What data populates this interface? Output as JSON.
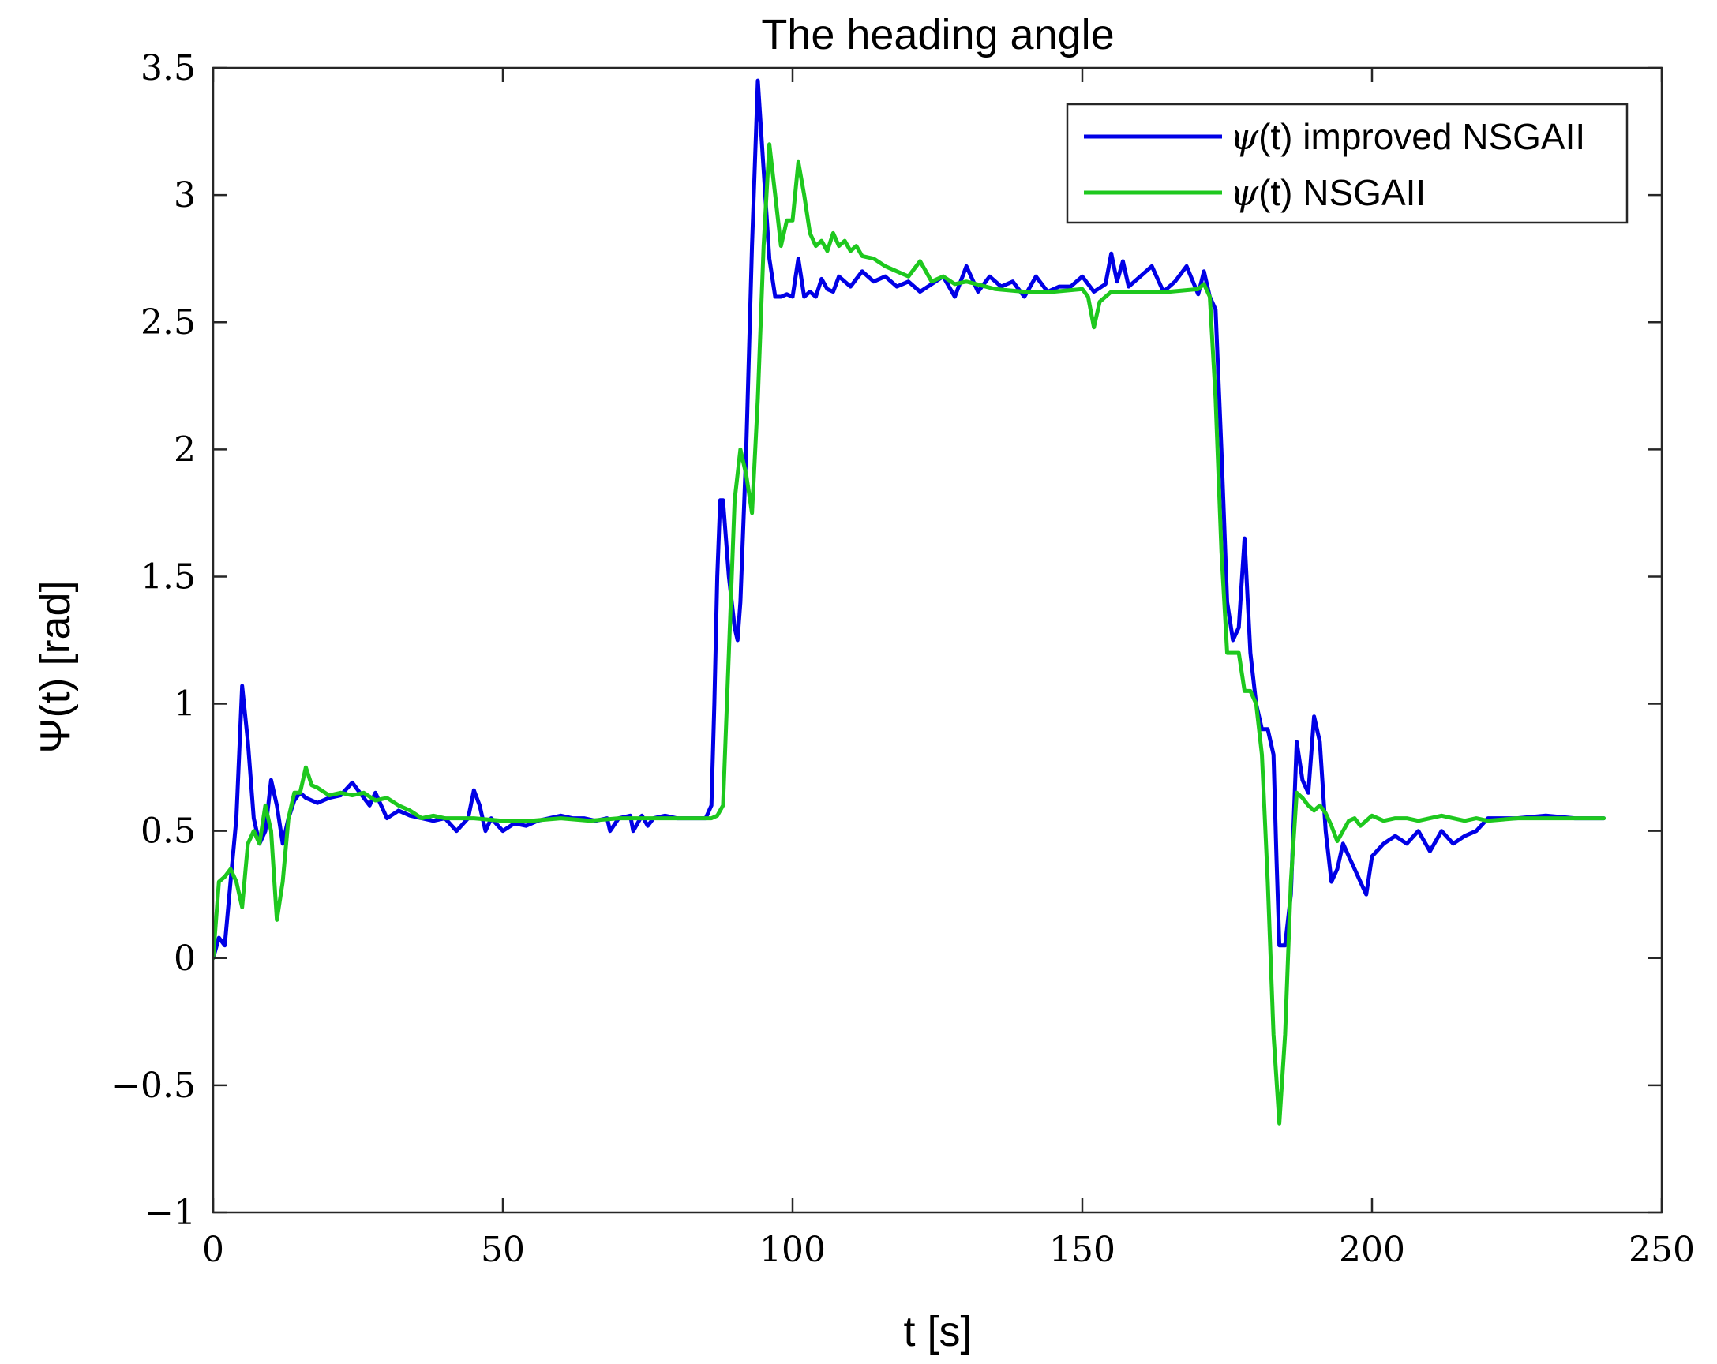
{
  "chart_data": {
    "type": "line",
    "title": "The heading angle",
    "xlabel": "t [s]",
    "ylabel": "Ψ(t) [rad]",
    "xlim": [
      0,
      250
    ],
    "ylim": [
      -1,
      3.5
    ],
    "xticks": [
      0,
      50,
      100,
      150,
      200,
      250
    ],
    "xtick_labels": [
      "0",
      "50",
      "100",
      "150",
      "200",
      "250"
    ],
    "yticks": [
      -1,
      -0.5,
      0,
      0.5,
      1,
      1.5,
      2,
      2.5,
      3,
      3.5
    ],
    "ytick_labels": [
      "−1",
      "−0.5",
      "0",
      "0.5",
      "1",
      "1.5",
      "2",
      "2.5",
      "3",
      "3.5"
    ],
    "grid": false,
    "box": true,
    "legend_position": "top-right",
    "series": [
      {
        "name": "ψ(t) improved NSGAII",
        "legend_symbol": "ψ",
        "legend_rest": "(t) improved NSGAII",
        "color": "#0000e6",
        "x": [
          0,
          1,
          2,
          3,
          4,
          5,
          6,
          7,
          8,
          9,
          10,
          11,
          12,
          13,
          14,
          15,
          16,
          17,
          18,
          20,
          22,
          24,
          25,
          27,
          28,
          30,
          32,
          34,
          36,
          38,
          40,
          42,
          44,
          45,
          46,
          47,
          48,
          50,
          52,
          54,
          56,
          58,
          60,
          62,
          64,
          66,
          68,
          68.5,
          70,
          72,
          72.5,
          74,
          75,
          76,
          78,
          80,
          82,
          84,
          85,
          86,
          86.5,
          87,
          87.5,
          88,
          89,
          90,
          90.5,
          91,
          92,
          93,
          94,
          95,
          96,
          97,
          98,
          99,
          100,
          101,
          102,
          103,
          104,
          105,
          106,
          107,
          108,
          110,
          112,
          114,
          116,
          118,
          120,
          122,
          124,
          126,
          128,
          130,
          132,
          134,
          136,
          138,
          140,
          142,
          144,
          146,
          148,
          150,
          152,
          154,
          155,
          156,
          157,
          158,
          160,
          162,
          164,
          166,
          168,
          170,
          171,
          172,
          173,
          174,
          175,
          176,
          177,
          178,
          179,
          180,
          181,
          182,
          183,
          183.5,
          184,
          185,
          186,
          187,
          188,
          189,
          190,
          191,
          192,
          193,
          194,
          195,
          196,
          197,
          198,
          199,
          200,
          202,
          204,
          206,
          208,
          210,
          212,
          214,
          216,
          218,
          220,
          225,
          230,
          235,
          240
        ],
        "y": [
          0.0,
          0.08,
          0.05,
          0.3,
          0.55,
          1.07,
          0.85,
          0.55,
          0.45,
          0.5,
          0.7,
          0.6,
          0.45,
          0.55,
          0.62,
          0.65,
          0.63,
          0.62,
          0.61,
          0.63,
          0.64,
          0.69,
          0.66,
          0.6,
          0.65,
          0.55,
          0.58,
          0.56,
          0.55,
          0.54,
          0.55,
          0.5,
          0.55,
          0.66,
          0.6,
          0.5,
          0.55,
          0.5,
          0.53,
          0.52,
          0.54,
          0.55,
          0.56,
          0.55,
          0.55,
          0.54,
          0.55,
          0.5,
          0.55,
          0.56,
          0.5,
          0.56,
          0.52,
          0.55,
          0.56,
          0.55,
          0.55,
          0.55,
          0.55,
          0.6,
          1.0,
          1.5,
          1.8,
          1.8,
          1.5,
          1.3,
          1.25,
          1.4,
          2.0,
          2.8,
          3.45,
          3.1,
          2.75,
          2.6,
          2.6,
          2.61,
          2.6,
          2.75,
          2.6,
          2.62,
          2.6,
          2.67,
          2.63,
          2.62,
          2.68,
          2.64,
          2.7,
          2.66,
          2.68,
          2.64,
          2.66,
          2.62,
          2.65,
          2.68,
          2.6,
          2.72,
          2.62,
          2.68,
          2.64,
          2.66,
          2.6,
          2.68,
          2.62,
          2.64,
          2.64,
          2.68,
          2.62,
          2.65,
          2.77,
          2.66,
          2.74,
          2.64,
          2.68,
          2.72,
          2.62,
          2.66,
          2.72,
          2.61,
          2.7,
          2.6,
          2.55,
          2.0,
          1.4,
          1.25,
          1.3,
          1.65,
          1.2,
          1.0,
          0.9,
          0.9,
          0.8,
          0.4,
          0.05,
          0.05,
          0.25,
          0.85,
          0.7,
          0.65,
          0.95,
          0.85,
          0.5,
          0.3,
          0.35,
          0.45,
          0.4,
          0.35,
          0.3,
          0.25,
          0.4,
          0.45,
          0.48,
          0.45,
          0.5,
          0.42,
          0.5,
          0.45,
          0.48,
          0.5,
          0.55,
          0.55,
          0.56,
          0.55,
          0.55
        ]
      },
      {
        "name": "ψ(t) NSGAII",
        "legend_symbol": "ψ",
        "legend_rest": "(t) NSGAII",
        "color": "#1ec81e",
        "x": [
          0,
          1,
          2,
          3,
          4,
          5,
          6,
          7,
          8,
          9,
          10,
          11,
          12,
          13,
          14,
          15,
          16,
          17,
          18,
          20,
          22,
          24,
          26,
          28,
          30,
          32,
          34,
          36,
          38,
          40,
          45,
          50,
          55,
          60,
          65,
          70,
          75,
          80,
          85,
          86,
          87,
          88,
          89,
          90,
          91,
          92,
          93,
          94,
          95,
          96,
          97,
          98,
          99,
          100,
          101,
          102,
          103,
          104,
          105,
          106,
          107,
          108,
          109,
          110,
          111,
          112,
          114,
          116,
          118,
          120,
          122,
          124,
          126,
          128,
          130,
          135,
          140,
          145,
          150,
          151,
          152,
          153,
          155,
          160,
          165,
          170,
          171,
          172,
          173,
          174,
          175,
          176,
          177,
          178,
          179,
          180,
          181,
          182,
          183,
          184,
          185,
          186,
          187,
          188,
          189,
          190,
          191,
          192,
          193,
          194,
          195,
          196,
          197,
          198,
          200,
          202,
          204,
          206,
          208,
          210,
          212,
          214,
          216,
          218,
          220,
          225,
          230,
          235,
          240
        ],
        "y": [
          0.0,
          0.3,
          0.32,
          0.35,
          0.3,
          0.2,
          0.45,
          0.5,
          0.45,
          0.6,
          0.5,
          0.15,
          0.3,
          0.55,
          0.65,
          0.65,
          0.75,
          0.68,
          0.67,
          0.64,
          0.65,
          0.64,
          0.65,
          0.62,
          0.63,
          0.6,
          0.58,
          0.55,
          0.56,
          0.55,
          0.55,
          0.54,
          0.54,
          0.55,
          0.54,
          0.55,
          0.55,
          0.55,
          0.55,
          0.55,
          0.56,
          0.6,
          1.2,
          1.8,
          2.0,
          1.9,
          1.75,
          2.2,
          2.8,
          3.2,
          3.0,
          2.8,
          2.9,
          2.9,
          3.13,
          3.0,
          2.85,
          2.8,
          2.82,
          2.78,
          2.85,
          2.8,
          2.82,
          2.78,
          2.8,
          2.76,
          2.75,
          2.72,
          2.7,
          2.68,
          2.74,
          2.66,
          2.68,
          2.65,
          2.66,
          2.63,
          2.62,
          2.62,
          2.63,
          2.6,
          2.48,
          2.58,
          2.62,
          2.62,
          2.62,
          2.63,
          2.65,
          2.6,
          2.2,
          1.6,
          1.2,
          1.2,
          1.2,
          1.05,
          1.05,
          1.0,
          0.8,
          0.3,
          -0.3,
          -0.65,
          -0.3,
          0.3,
          0.65,
          0.63,
          0.6,
          0.58,
          0.6,
          0.57,
          0.52,
          0.46,
          0.5,
          0.54,
          0.55,
          0.52,
          0.56,
          0.54,
          0.55,
          0.55,
          0.54,
          0.55,
          0.56,
          0.55,
          0.54,
          0.55,
          0.54,
          0.55,
          0.55,
          0.55,
          0.55
        ]
      }
    ]
  }
}
